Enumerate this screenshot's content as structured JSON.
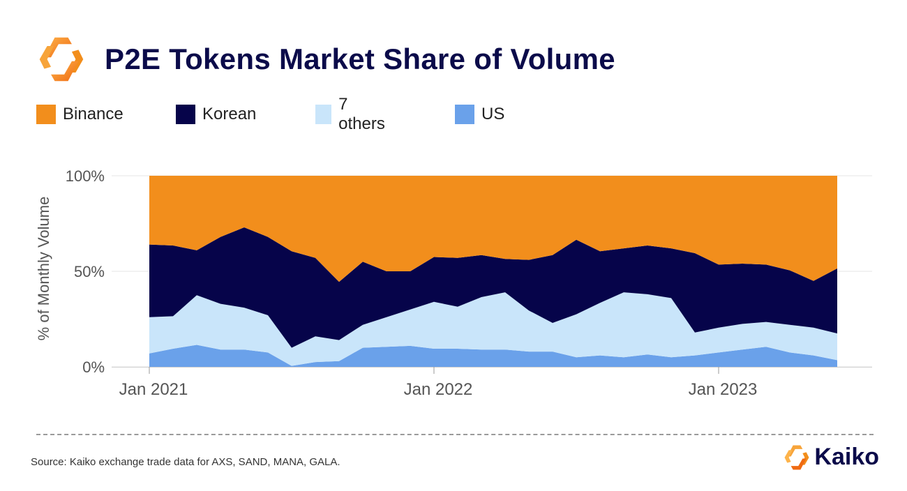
{
  "header": {
    "title": "P2E Tokens Market Share of Volume"
  },
  "footer": {
    "source": "Source: Kaiko exchange trade data for AXS, SAND, MANA, GALA.",
    "brand": "Kaiko"
  },
  "colors": {
    "brand_orange": "#F28E1C",
    "navy": "#0b0b4a"
  },
  "chart_data": {
    "type": "area",
    "stacked": true,
    "percent": true,
    "ylabel": "% of Monthly Volume",
    "ylim": [
      0,
      100
    ],
    "y_ticks": [
      {
        "value": 0,
        "label": "0%"
      },
      {
        "value": 50,
        "label": "50%"
      },
      {
        "value": 100,
        "label": "100%"
      }
    ],
    "x_ticks": [
      {
        "index": 0,
        "label": "Jan 2021"
      },
      {
        "index": 12,
        "label": "Jan 2022"
      },
      {
        "index": 24,
        "label": "Jan 2023"
      }
    ],
    "x": [
      "2021-01",
      "2021-02",
      "2021-03",
      "2021-04",
      "2021-05",
      "2021-06",
      "2021-07",
      "2021-08",
      "2021-09",
      "2021-10",
      "2021-11",
      "2021-12",
      "2022-01",
      "2022-02",
      "2022-03",
      "2022-04",
      "2022-05",
      "2022-06",
      "2022-07",
      "2022-08",
      "2022-09",
      "2022-10",
      "2022-11",
      "2022-12",
      "2023-01",
      "2023-02",
      "2023-03",
      "2023-04",
      "2023-05",
      "2023-06"
    ],
    "legend_order": [
      "Binance",
      "Korean",
      "7 others",
      "US"
    ],
    "series": [
      {
        "name": "US",
        "color": "#6AA1EA",
        "values": [
          7,
          9.5,
          11.5,
          9,
          9,
          7.5,
          0.5,
          2.5,
          3,
          10,
          10.5,
          11,
          9.5,
          9.5,
          9,
          9,
          8,
          8,
          5,
          6,
          5,
          6.5,
          5,
          6,
          7.5,
          9,
          10.5,
          7.5,
          6,
          3.5
        ]
      },
      {
        "name": "7 others",
        "color": "#C9E5FA",
        "values": [
          19,
          17,
          26,
          24,
          22,
          19.5,
          9.5,
          13.5,
          11,
          12,
          15.5,
          19,
          24.5,
          22,
          27.5,
          30,
          21.5,
          15,
          22.5,
          27.5,
          34,
          31.5,
          31,
          12,
          13,
          13.5,
          13,
          14.5,
          14.5,
          14
        ]
      },
      {
        "name": "Korean",
        "color": "#06044A",
        "values": [
          38,
          37,
          23.5,
          35,
          42,
          41,
          50.5,
          41,
          30.5,
          33,
          24,
          20,
          23.5,
          25.5,
          22,
          17.5,
          26.5,
          35.5,
          39,
          27,
          23,
          25.5,
          26,
          41.5,
          33,
          31.5,
          30,
          28.5,
          24.5,
          34
        ]
      },
      {
        "name": "Binance",
        "color": "#F28E1C",
        "values": [
          36,
          36.5,
          39,
          32,
          27,
          32,
          39.5,
          43,
          55.5,
          45,
          50,
          50,
          42.5,
          43,
          41.5,
          43.5,
          44,
          41.5,
          33.5,
          39.5,
          38,
          36.5,
          38,
          40.5,
          46.5,
          46,
          46.5,
          49.5,
          55,
          48.5
        ]
      }
    ]
  }
}
